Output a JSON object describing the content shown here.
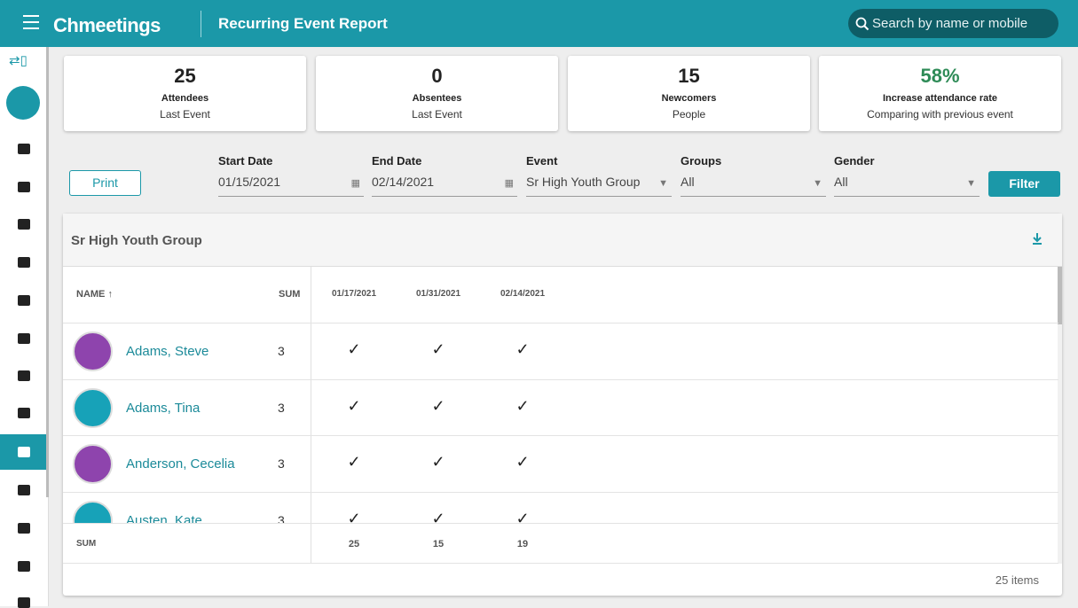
{
  "header": {
    "brand": "Chmeetings",
    "title": "Recurring Event Report",
    "search": "Search by name or mobile"
  },
  "stats": [
    {
      "value": "25",
      "label": "Attendees",
      "sub": "Last Event"
    },
    {
      "value": "0",
      "label": "Absentees",
      "sub": "Last Event"
    },
    {
      "value": "15",
      "label": "Newcomers",
      "sub": "People"
    },
    {
      "value": "58%",
      "label": "Increase attendance rate",
      "sub": "Comparing with previous event"
    }
  ],
  "filters": {
    "print": "Print",
    "filter": "Filter",
    "fields": [
      {
        "label": "Start Date",
        "value": "01/15/2021",
        "kind": "date"
      },
      {
        "label": "End Date",
        "value": "02/14/2021",
        "kind": "date"
      },
      {
        "label": "Event",
        "value": "Sr High Youth Group",
        "kind": "select"
      },
      {
        "label": "Groups",
        "value": "All",
        "kind": "select"
      },
      {
        "label": "Gender",
        "value": "All",
        "kind": "select"
      }
    ]
  },
  "table": {
    "title": "Sr High Youth Group",
    "name_header": "NAME",
    "sum_header": "SUM",
    "dates": [
      "01/17/2021",
      "01/31/2021",
      "02/14/2021"
    ],
    "rows": [
      {
        "name": "Adams, Steve",
        "sum": "3"
      },
      {
        "name": "Adams, Tina",
        "sum": "3"
      },
      {
        "name": "Anderson, Cecelia",
        "sum": "3"
      },
      {
        "name": "Austen, Kate",
        "sum": "3"
      }
    ],
    "footer_label": "SUM",
    "footer_values": [
      "25",
      "15",
      "19"
    ],
    "count": "25 items"
  }
}
